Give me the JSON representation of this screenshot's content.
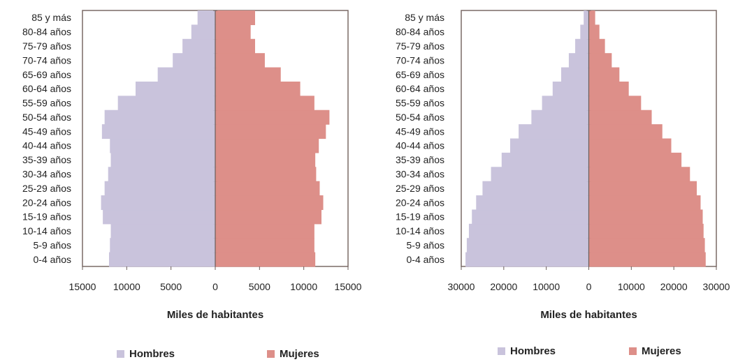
{
  "chart_data": [
    {
      "type": "bar",
      "orientation": "horizontal-population-pyramid",
      "categories": [
        "0-4 años",
        "5-9 años",
        "10-14 años",
        "15-19 años",
        "20-24 años",
        "25-29 años",
        "30-34 años",
        "35-39 años",
        "40-44 años",
        "45-49 años",
        "50-54 años",
        "55-59 años",
        "60-64 años",
        "65-69 años",
        "70-74 años",
        "75-79 años",
        "80-84 años",
        "85 y más"
      ],
      "series": [
        {
          "name": "Hombres",
          "color": "#c9c3dc",
          "values": [
            12000,
            11900,
            11800,
            12700,
            12900,
            12500,
            12100,
            11800,
            11900,
            12800,
            12500,
            11000,
            9000,
            6500,
            4800,
            3700,
            2700,
            2000
          ]
        },
        {
          "name": "Mujeres",
          "color": "#dd8f89",
          "values": [
            11300,
            11200,
            11200,
            12000,
            12200,
            11800,
            11400,
            11300,
            11700,
            12500,
            12900,
            11200,
            9600,
            7400,
            5600,
            4500,
            4000,
            4500
          ]
        }
      ],
      "xlabel": "Miles de habitantes",
      "xlim": [
        -15000,
        15000
      ],
      "xticks": [
        "15000",
        "10000",
        "5000",
        "0",
        "5000",
        "10000",
        "15000"
      ],
      "legend_position": "bottom"
    },
    {
      "type": "bar",
      "orientation": "horizontal-population-pyramid",
      "categories": [
        "0-4 años",
        "5-9 años",
        "10-14 años",
        "15-19 años",
        "20-24 años",
        "25-29 años",
        "30-34 años",
        "35-39 años",
        "40-44 años",
        "45-49 años",
        "50-54 años",
        "55-59 años",
        "60-64 años",
        "65-69 años",
        "70-74 años",
        "75-79 años",
        "80-84 años",
        "85 y más"
      ],
      "series": [
        {
          "name": "Hombres",
          "color": "#c9c3dc",
          "values": [
            29000,
            28700,
            28200,
            27500,
            26500,
            25000,
            23000,
            20500,
            18500,
            16500,
            13500,
            11000,
            8500,
            6500,
            4700,
            3200,
            2000,
            1200
          ]
        },
        {
          "name": "Mujeres",
          "color": "#dd8f89",
          "values": [
            27500,
            27300,
            27000,
            26800,
            26300,
            25400,
            23800,
            21800,
            19400,
            17300,
            14800,
            12300,
            9400,
            7200,
            5400,
            3800,
            2500,
            1500
          ]
        }
      ],
      "xlabel": "Miles de habitantes",
      "xlim": [
        -30000,
        30000
      ],
      "xticks": [
        "30000",
        "20000",
        "10000",
        "0",
        "10000",
        "20000",
        "30000"
      ],
      "legend_position": "bottom"
    }
  ]
}
